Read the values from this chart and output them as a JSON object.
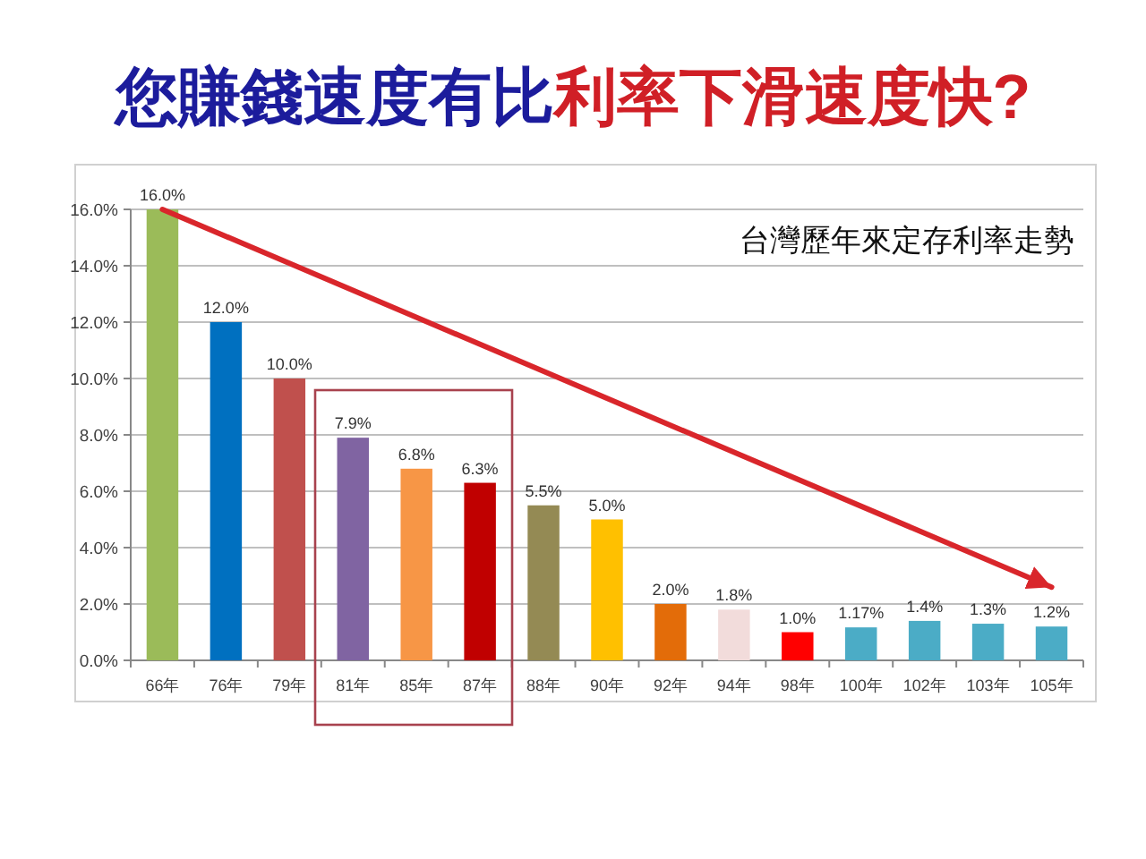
{
  "chart_data": {
    "type": "bar",
    "title": "您賺錢速度有比利率下滑速度快?",
    "subtitle": "台灣歷年來定存利率走勢",
    "categories": [
      "66年",
      "76年",
      "79年",
      "81年",
      "85年",
      "87年",
      "88年",
      "90年",
      "92年",
      "94年",
      "98年",
      "100年",
      "102年",
      "103年",
      "105年"
    ],
    "series": [
      {
        "colors": [
          "#9bbb59",
          "#0070c0",
          "#c0504d",
          "#8064a2",
          "#f79646",
          "#c00000",
          "#948a54",
          "#ffc000",
          "#e36c09",
          "#f2dcdb",
          "#ff0000",
          "#4bacc6",
          "#4bacc6",
          "#4bacc6",
          "#4bacc6"
        ],
        "values": [
          16.0,
          12.0,
          10.0,
          7.9,
          6.8,
          6.3,
          5.5,
          5.0,
          2.0,
          1.8,
          1.0,
          1.17,
          1.4,
          1.3,
          1.2
        ],
        "value_labels": [
          "16.0%",
          "12.0%",
          "10.0%",
          "7.9%",
          "6.8%",
          "6.3%",
          "5.5%",
          "5.0%",
          "2.0%",
          "1.8%",
          "1.0%",
          "1.17%",
          "1.4%",
          "1.3%",
          "1.2%"
        ]
      },
      {
        "type": "line",
        "x": [
          "66年",
          "105年"
        ],
        "values": [
          16.0,
          2.6
        ],
        "color": "#d9262b"
      }
    ],
    "ylim": [
      0,
      16
    ],
    "yticks": [
      {
        "value": 0,
        "label": "0.0%"
      },
      {
        "value": 2,
        "label": "2.0%"
      },
      {
        "value": 4,
        "label": "4.0%"
      },
      {
        "value": 6,
        "label": "6.0%"
      },
      {
        "value": 8,
        "label": "8.0%"
      },
      {
        "value": 10,
        "label": "10.0%"
      },
      {
        "value": 12,
        "label": "12.0%"
      },
      {
        "value": 14,
        "label": "14.0%"
      },
      {
        "value": 16,
        "label": "16.0%"
      }
    ],
    "grid": "y"
  }
}
